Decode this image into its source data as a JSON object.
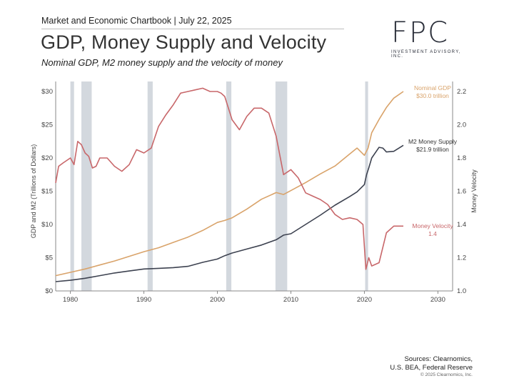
{
  "header": {
    "chartbook": "Market and Economic Chartbook | July 22, 2025",
    "title": "GDP, Money Supply and Velocity",
    "subtitle": "Nominal GDP, M2 money supply and the velocity of money"
  },
  "logo": {
    "text": "FPC",
    "tagline": "INVESTMENT ADVISORY, INC."
  },
  "footer": {
    "sources_line1": "Sources: Clearnomics,",
    "sources_line2": "U.S. BEA, Federal Reserve",
    "copyright": "© 2025 Clearnomics, Inc."
  },
  "colors": {
    "gdp": "#d9a36a",
    "m2": "#3d4250",
    "velocity": "#c8676a",
    "recession": "#d3d8de",
    "axis": "#444444"
  },
  "chart_data": {
    "type": "line",
    "ylabel": "GDP and M2 (Trillions of Dollars)",
    "y2label": "Money Velocity",
    "xlim": [
      1978,
      2032
    ],
    "ylim": [
      0,
      30
    ],
    "y2lim": [
      1.0,
      2.2
    ],
    "x_ticks": [
      1980,
      1990,
      2000,
      2010,
      2020,
      2030
    ],
    "y_ticks": [
      {
        "v": 0,
        "label": "$0"
      },
      {
        "v": 5,
        "label": "$5"
      },
      {
        "v": 10,
        "label": "$10"
      },
      {
        "v": 15,
        "label": "$15"
      },
      {
        "v": 20,
        "label": "$20"
      },
      {
        "v": 25,
        "label": "$25"
      },
      {
        "v": 30,
        "label": "$30"
      }
    ],
    "y2_ticks": [
      1.0,
      1.2,
      1.4,
      1.6,
      1.8,
      2.0,
      2.2
    ],
    "recessions": [
      [
        1980.0,
        1980.5
      ],
      [
        1981.5,
        1982.9
      ],
      [
        1990.5,
        1991.2
      ],
      [
        2001.2,
        2001.9
      ],
      [
        2007.9,
        2009.5
      ],
      [
        2020.1,
        2020.5
      ]
    ],
    "series": [
      {
        "name": "Nominal GDP",
        "axis": "left",
        "annotation": [
          "Nominal GDP",
          "$30.0 trillion"
        ],
        "x": [
          1978,
          1980,
          1982,
          1984,
          1986,
          1988,
          1990,
          1992,
          1994,
          1996,
          1998,
          2000,
          2001,
          2002,
          2004,
          2006,
          2008,
          2009,
          2010,
          2012,
          2014,
          2016,
          2018,
          2019,
          2020,
          2020.5,
          2021,
          2022,
          2023,
          2024,
          2025.3
        ],
        "y": [
          2.3,
          2.8,
          3.3,
          3.9,
          4.5,
          5.2,
          5.9,
          6.5,
          7.3,
          8.1,
          9.1,
          10.3,
          10.6,
          11.0,
          12.3,
          13.8,
          14.8,
          14.5,
          15.1,
          16.3,
          17.6,
          18.8,
          20.6,
          21.5,
          20.4,
          21.5,
          23.8,
          25.8,
          27.6,
          29.0,
          30.0
        ]
      },
      {
        "name": "M2 Money Supply",
        "axis": "left",
        "annotation": [
          "M2 Money Supply",
          "$21.9 trillion"
        ],
        "x": [
          1978,
          1980,
          1982,
          1984,
          1986,
          1988,
          1990,
          1992,
          1994,
          1996,
          1998,
          2000,
          2001,
          2002,
          2004,
          2006,
          2008,
          2009,
          2010,
          2012,
          2014,
          2016,
          2018,
          2019,
          2020,
          2020.3,
          2020.6,
          2021,
          2022,
          2022.5,
          2023,
          2024,
          2025.3
        ],
        "y": [
          1.4,
          1.6,
          1.9,
          2.3,
          2.7,
          3.0,
          3.3,
          3.4,
          3.5,
          3.7,
          4.3,
          4.8,
          5.3,
          5.7,
          6.3,
          6.9,
          7.7,
          8.4,
          8.6,
          10.0,
          11.4,
          12.9,
          14.2,
          14.9,
          16.0,
          17.5,
          18.5,
          20.0,
          21.6,
          21.5,
          20.9,
          21.0,
          21.9
        ]
      },
      {
        "name": "Money Velocity",
        "axis": "right",
        "annotation": [
          "Money Velocity",
          "1.4"
        ],
        "x": [
          1978,
          1978.4,
          1979,
          1980,
          1980.5,
          1981,
          1981.5,
          1982,
          1982.5,
          1983,
          1983.5,
          1984,
          1985,
          1986,
          1987,
          1988,
          1989,
          1990,
          1991,
          1992,
          1993,
          1994,
          1995,
          1996,
          1997,
          1998,
          1999,
          2000,
          2000.5,
          2001,
          2002,
          2003,
          2004,
          2005,
          2006,
          2007,
          2008,
          2009,
          2010,
          2011,
          2012,
          2013,
          2014,
          2015,
          2016,
          2017,
          2018,
          2019,
          2019.8,
          2020.2,
          2020.6,
          2021,
          2022,
          2023,
          2024,
          2025.3
        ],
        "y": [
          1.65,
          1.75,
          1.77,
          1.8,
          1.76,
          1.9,
          1.88,
          1.83,
          1.81,
          1.74,
          1.75,
          1.8,
          1.8,
          1.75,
          1.72,
          1.76,
          1.85,
          1.83,
          1.86,
          1.99,
          2.06,
          2.12,
          2.19,
          2.2,
          2.21,
          2.22,
          2.2,
          2.2,
          2.19,
          2.17,
          2.03,
          1.97,
          2.05,
          2.1,
          2.1,
          2.07,
          1.93,
          1.7,
          1.73,
          1.68,
          1.59,
          1.57,
          1.55,
          1.52,
          1.46,
          1.43,
          1.44,
          1.43,
          1.4,
          1.13,
          1.2,
          1.15,
          1.17,
          1.35,
          1.39,
          1.39
        ]
      }
    ]
  }
}
